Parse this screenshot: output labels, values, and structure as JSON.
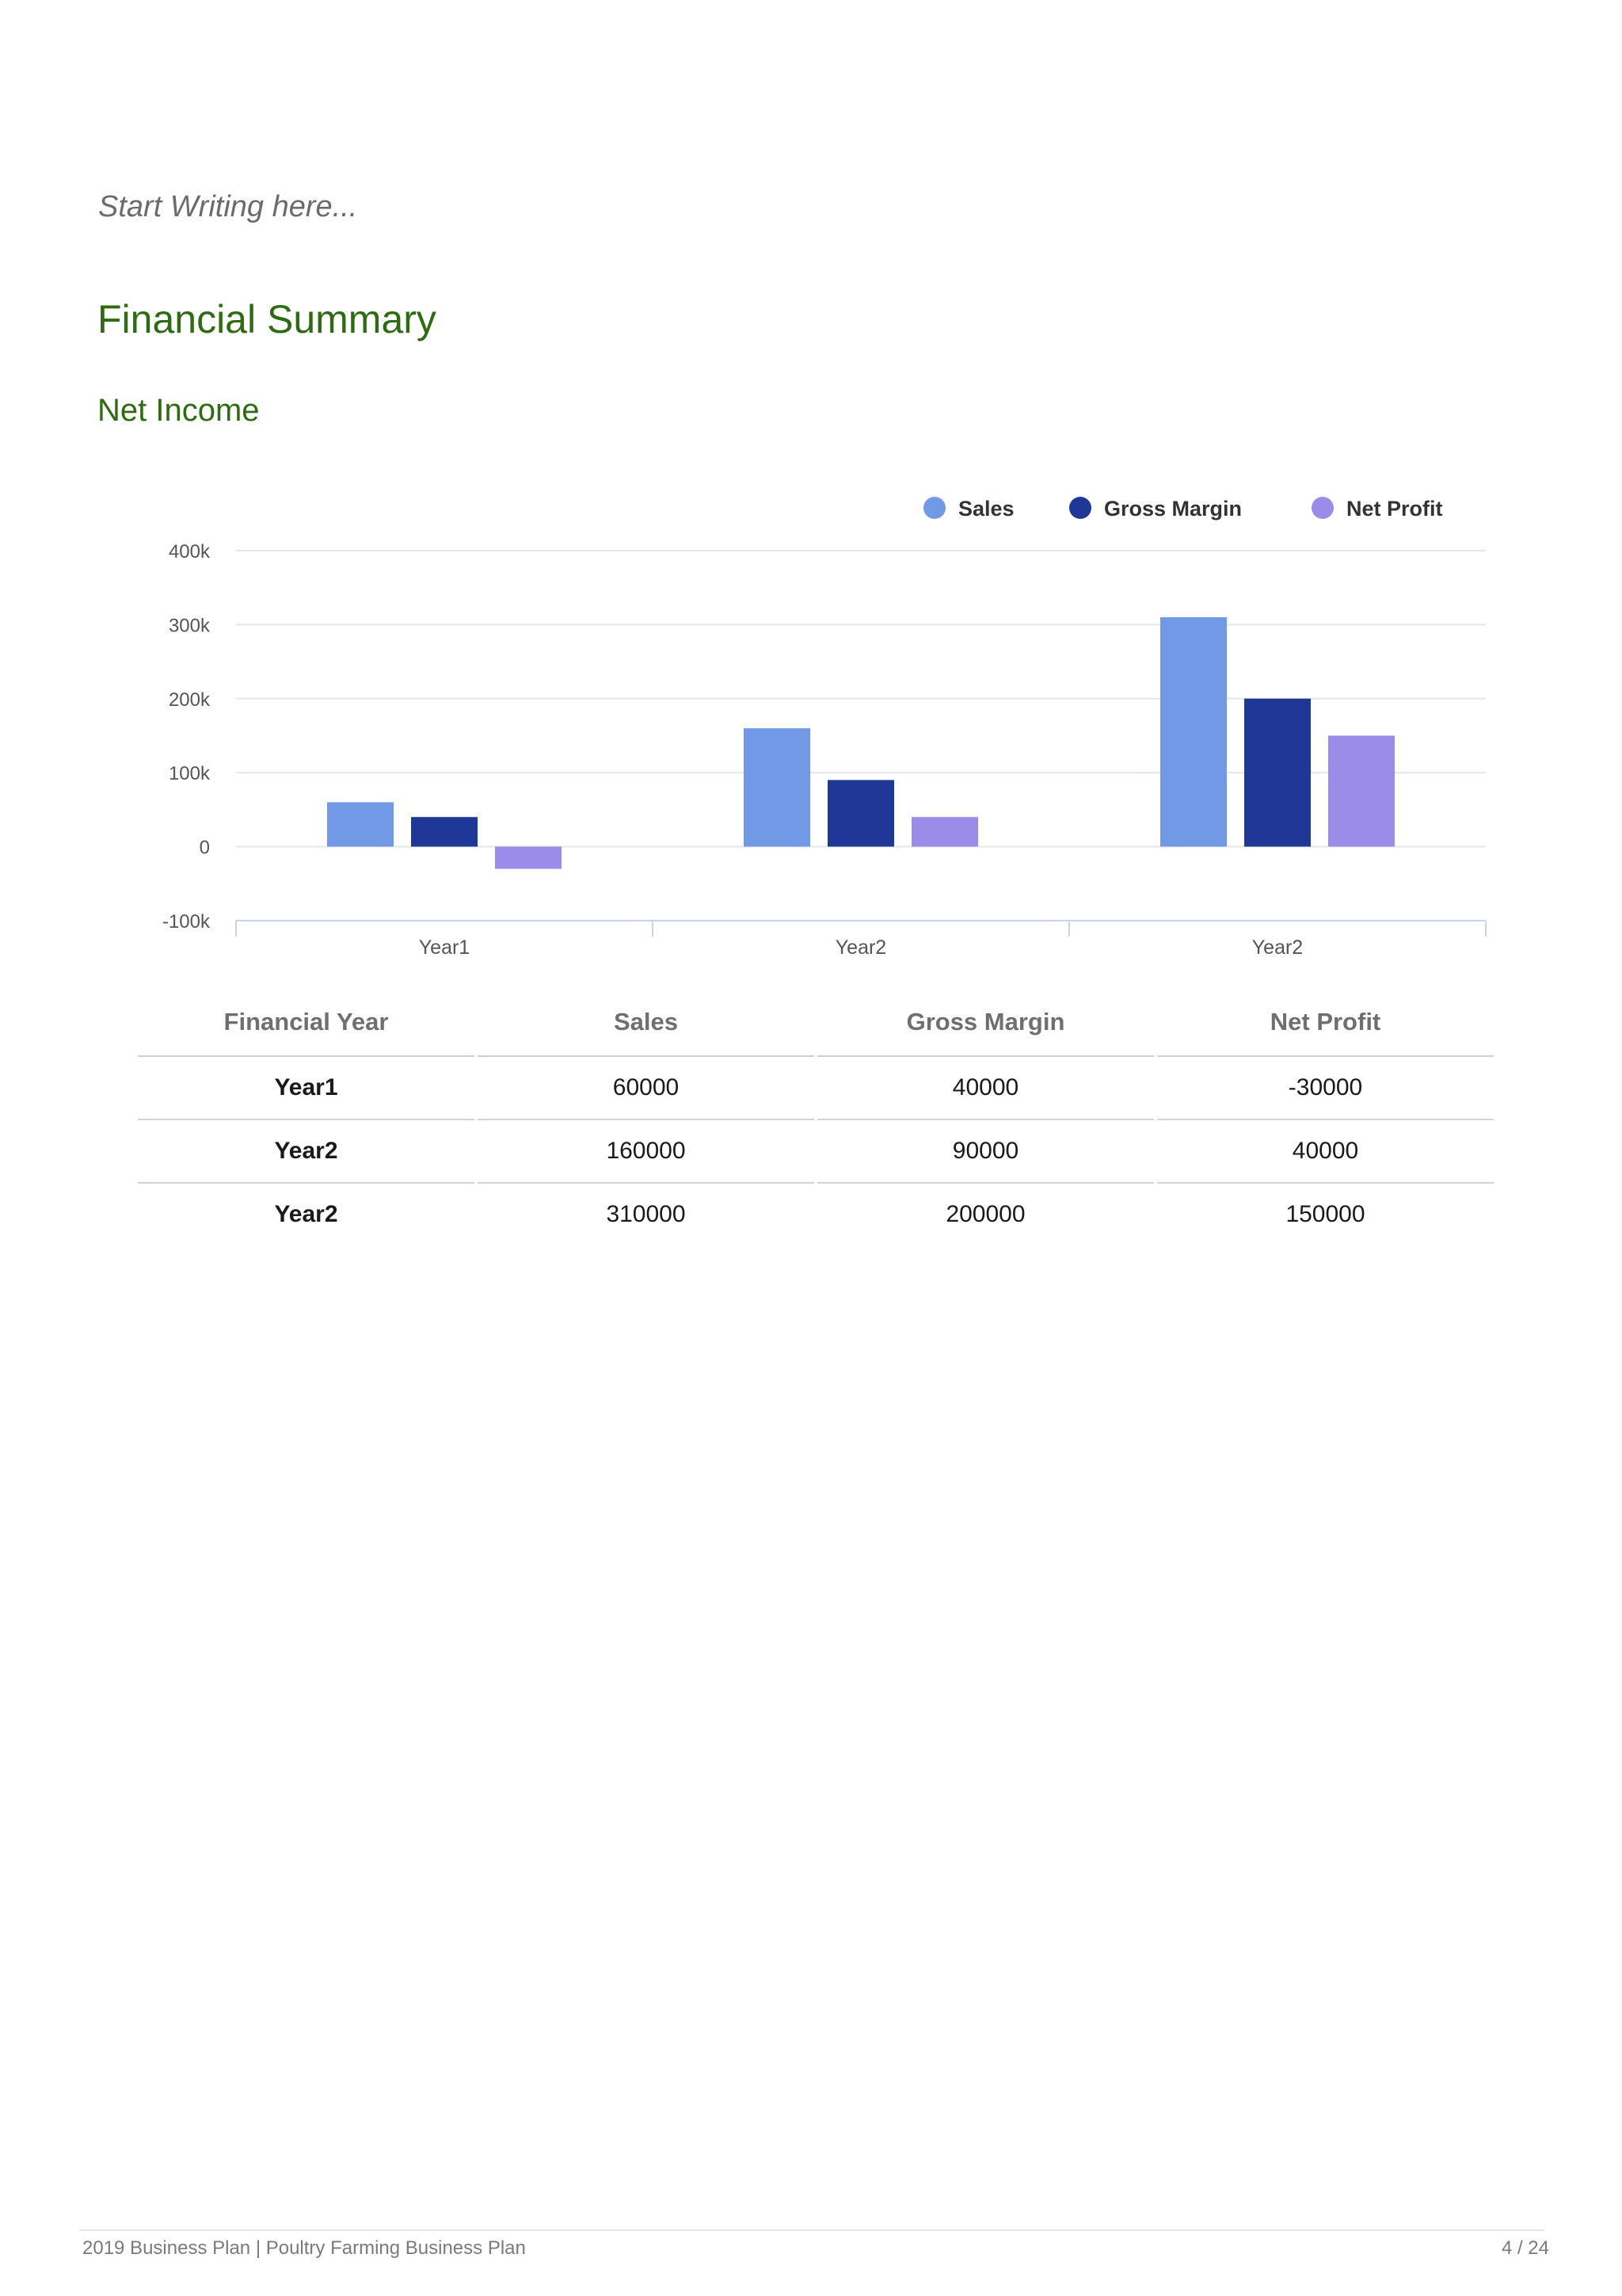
{
  "placeholder_text": "Start Writing here...",
  "section_title": "Financial Summary",
  "subsection_title": "Net Income",
  "chart_data": {
    "type": "bar",
    "categories": [
      "Year1",
      "Year2",
      "Year2"
    ],
    "series": [
      {
        "name": "Sales",
        "color": "#7299e6",
        "values": [
          60000,
          160000,
          310000
        ]
      },
      {
        "name": "Gross Margin",
        "color": "#1f3796",
        "values": [
          40000,
          90000,
          200000
        ]
      },
      {
        "name": "Net Profit",
        "color": "#9b8cea",
        "values": [
          -30000,
          40000,
          150000
        ]
      }
    ],
    "yticks": [
      400000,
      300000,
      200000,
      100000,
      0,
      -100000
    ],
    "ytick_labels": [
      "400k",
      "300k",
      "200k",
      "100k",
      "0",
      "-100k"
    ],
    "ylim": [
      -100000,
      400000
    ],
    "legend_position": "top-right",
    "grid": true
  },
  "table": {
    "headers": [
      "Financial Year",
      "Sales",
      "Gross Margin",
      "Net Profit"
    ],
    "rows": [
      [
        "Year1",
        "60000",
        "40000",
        "-30000"
      ],
      [
        "Year2",
        "160000",
        "90000",
        "40000"
      ],
      [
        "Year2",
        "310000",
        "200000",
        "150000"
      ]
    ]
  },
  "footer": {
    "left": "2019 Business Plan | Poultry Farming Business Plan",
    "right": "4 / 24"
  }
}
